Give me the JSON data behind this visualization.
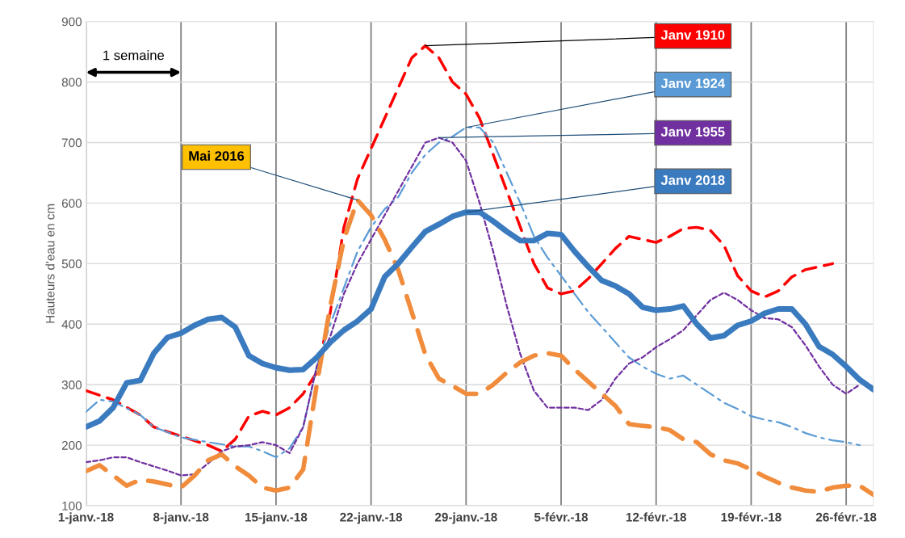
{
  "chart_data": {
    "type": "line",
    "ylabel": "Hauteurs d'eau en cm",
    "grid": true,
    "legend": false,
    "xlim": [
      "2018-01-01",
      "2018-02-28"
    ],
    "ylim": [
      100,
      900
    ],
    "yticks": [
      100,
      200,
      300,
      400,
      500,
      600,
      700,
      800,
      900
    ],
    "xticks": [
      {
        "value": "2018-01-01",
        "label": "1-janv.-18"
      },
      {
        "value": "2018-01-08",
        "label": "8-janv.-18"
      },
      {
        "value": "2018-01-15",
        "label": "15-janv.-18"
      },
      {
        "value": "2018-01-22",
        "label": "22-janv.-18"
      },
      {
        "value": "2018-01-29",
        "label": "29-janv.-18"
      },
      {
        "value": "2018-02-05",
        "label": "5-févr.-18"
      },
      {
        "value": "2018-02-12",
        "label": "12-févr.-18"
      },
      {
        "value": "2018-02-19",
        "label": "19-févr.-18"
      },
      {
        "value": "2018-02-26",
        "label": "26-févr.-18"
      }
    ],
    "annotations": [
      "1 semaine"
    ],
    "series": [
      {
        "name": "Janv 1910",
        "color": "#ff0000",
        "line_style": "dashed",
        "x": [
          "2018-01-01",
          "2018-01-03",
          "2018-01-05",
          "2018-01-06",
          "2018-01-08",
          "2018-01-10",
          "2018-01-11",
          "2018-01-12",
          "2018-01-13",
          "2018-01-14",
          "2018-01-15",
          "2018-01-16",
          "2018-01-17",
          "2018-01-18",
          "2018-01-19",
          "2018-01-20",
          "2018-01-21",
          "2018-01-22",
          "2018-01-23",
          "2018-01-24",
          "2018-01-25",
          "2018-01-26",
          "2018-01-27",
          "2018-01-28",
          "2018-01-29",
          "2018-01-30",
          "2018-01-31",
          "2018-02-01",
          "2018-02-02",
          "2018-02-03",
          "2018-02-04",
          "2018-02-05",
          "2018-02-06",
          "2018-02-07",
          "2018-02-08",
          "2018-02-09",
          "2018-02-10",
          "2018-02-11",
          "2018-02-12",
          "2018-02-13",
          "2018-02-14",
          "2018-02-15",
          "2018-02-16",
          "2018-02-17",
          "2018-02-18",
          "2018-02-19",
          "2018-02-20",
          "2018-02-21",
          "2018-02-22",
          "2018-02-23",
          "2018-02-24",
          "2018-02-25"
        ],
        "values": [
          290,
          275,
          250,
          230,
          215,
          200,
          190,
          210,
          248,
          256,
          250,
          262,
          285,
          320,
          420,
          560,
          640,
          690,
          740,
          790,
          840,
          860,
          840,
          800,
          780,
          740,
          680,
          620,
          560,
          500,
          460,
          450,
          455,
          475,
          500,
          525,
          545,
          540,
          535,
          545,
          558,
          560,
          555,
          530,
          480,
          455,
          445,
          455,
          478,
          490,
          495,
          500
        ]
      },
      {
        "name": "Janv 1924",
        "color": "#5b9bd5",
        "line_style": "dashdot",
        "x": [
          "2018-01-01",
          "2018-01-02",
          "2018-01-03",
          "2018-01-05",
          "2018-01-06",
          "2018-01-08",
          "2018-01-10",
          "2018-01-12",
          "2018-01-13",
          "2018-01-14",
          "2018-01-15",
          "2018-01-16",
          "2018-01-17",
          "2018-01-18",
          "2018-01-19",
          "2018-01-20",
          "2018-01-21",
          "2018-01-22",
          "2018-01-23",
          "2018-01-24",
          "2018-01-25",
          "2018-01-26",
          "2018-01-27",
          "2018-01-28",
          "2018-01-29",
          "2018-01-30",
          "2018-01-31",
          "2018-02-01",
          "2018-02-02",
          "2018-02-03",
          "2018-02-04",
          "2018-02-05",
          "2018-02-06",
          "2018-02-07",
          "2018-02-08",
          "2018-02-09",
          "2018-02-10",
          "2018-02-11",
          "2018-02-12",
          "2018-02-13",
          "2018-02-14",
          "2018-02-15",
          "2018-02-16",
          "2018-02-17",
          "2018-02-18",
          "2018-02-19",
          "2018-02-20",
          "2018-02-21",
          "2018-02-22",
          "2018-02-23",
          "2018-02-24",
          "2018-02-25",
          "2018-02-26",
          "2018-02-27"
        ],
        "values": [
          255,
          275,
          272,
          250,
          230,
          213,
          205,
          198,
          198,
          190,
          180,
          195,
          230,
          330,
          400,
          460,
          520,
          560,
          590,
          610,
          650,
          680,
          700,
          710,
          725,
          725,
          700,
          650,
          600,
          545,
          510,
          480,
          450,
          420,
          395,
          370,
          345,
          330,
          318,
          310,
          315,
          300,
          285,
          270,
          260,
          248,
          242,
          238,
          230,
          220,
          213,
          208,
          205,
          200
        ]
      },
      {
        "name": "Janv 1955",
        "color": "#7030a0",
        "line_style": "dotted",
        "x": [
          "2018-01-01",
          "2018-01-02",
          "2018-01-03",
          "2018-01-04",
          "2018-01-05",
          "2018-01-06",
          "2018-01-07",
          "2018-01-08",
          "2018-01-09",
          "2018-01-10",
          "2018-01-11",
          "2018-01-12",
          "2018-01-13",
          "2018-01-14",
          "2018-01-15",
          "2018-01-16",
          "2018-01-17",
          "2018-01-18",
          "2018-01-19",
          "2018-01-20",
          "2018-01-21",
          "2018-01-22",
          "2018-01-23",
          "2018-01-24",
          "2018-01-25",
          "2018-01-26",
          "2018-01-27",
          "2018-01-28",
          "2018-01-29",
          "2018-01-30",
          "2018-01-31",
          "2018-02-01",
          "2018-02-02",
          "2018-02-03",
          "2018-02-04",
          "2018-02-05",
          "2018-02-06",
          "2018-02-07",
          "2018-02-08",
          "2018-02-09",
          "2018-02-10",
          "2018-02-11",
          "2018-02-12",
          "2018-02-13",
          "2018-02-14",
          "2018-02-15",
          "2018-02-16",
          "2018-02-17",
          "2018-02-18",
          "2018-02-19",
          "2018-02-20",
          "2018-02-21",
          "2018-02-22",
          "2018-02-23",
          "2018-02-24",
          "2018-02-25",
          "2018-02-26",
          "2018-02-27"
        ],
        "values": [
          172,
          175,
          180,
          180,
          172,
          165,
          158,
          150,
          152,
          170,
          190,
          198,
          200,
          205,
          200,
          187,
          230,
          330,
          380,
          450,
          500,
          540,
          580,
          620,
          660,
          700,
          708,
          700,
          670,
          600,
          520,
          430,
          350,
          290,
          262,
          262,
          262,
          258,
          275,
          310,
          335,
          345,
          362,
          375,
          390,
          415,
          440,
          452,
          440,
          423,
          410,
          408,
          395,
          365,
          330,
          300,
          285,
          300
        ]
      },
      {
        "name": "Janv 2018",
        "color": "#3a7abf",
        "line_style": "solid",
        "x": [
          "2018-01-01",
          "2018-01-02",
          "2018-01-03",
          "2018-01-04",
          "2018-01-05",
          "2018-01-06",
          "2018-01-07",
          "2018-01-08",
          "2018-01-09",
          "2018-01-10",
          "2018-01-11",
          "2018-01-12",
          "2018-01-13",
          "2018-01-14",
          "2018-01-15",
          "2018-01-16",
          "2018-01-17",
          "2018-01-18",
          "2018-01-19",
          "2018-01-20",
          "2018-01-21",
          "2018-01-22",
          "2018-01-23",
          "2018-01-24",
          "2018-01-25",
          "2018-01-26",
          "2018-01-27",
          "2018-01-28",
          "2018-01-29",
          "2018-01-30",
          "2018-01-31",
          "2018-02-01",
          "2018-02-02",
          "2018-02-03",
          "2018-02-04",
          "2018-02-05",
          "2018-02-06",
          "2018-02-07",
          "2018-02-08",
          "2018-02-09",
          "2018-02-10",
          "2018-02-11",
          "2018-02-12",
          "2018-02-13",
          "2018-02-14",
          "2018-02-15",
          "2018-02-16",
          "2018-02-17",
          "2018-02-18",
          "2018-02-19",
          "2018-02-20",
          "2018-02-21",
          "2018-02-22",
          "2018-02-23",
          "2018-02-24",
          "2018-02-25",
          "2018-02-26",
          "2018-02-27",
          "2018-02-28"
        ],
        "values": [
          230,
          240,
          262,
          303,
          307,
          352,
          378,
          385,
          398,
          408,
          411,
          395,
          348,
          335,
          328,
          324,
          325,
          345,
          370,
          390,
          405,
          425,
          478,
          500,
          527,
          553,
          565,
          578,
          585,
          585,
          570,
          553,
          538,
          538,
          550,
          548,
          520,
          495,
          472,
          463,
          450,
          428,
          423,
          425,
          430,
          400,
          377,
          381,
          398,
          405,
          418,
          425,
          425,
          400,
          363,
          350,
          330,
          308,
          292
        ]
      },
      {
        "name": "Mai 2016",
        "color": "#f08c3c",
        "line_style": "dashed",
        "x": [
          "2018-01-01",
          "2018-01-02",
          "2018-01-03",
          "2018-01-04",
          "2018-01-05",
          "2018-01-06",
          "2018-01-07",
          "2018-01-08",
          "2018-01-09",
          "2018-01-10",
          "2018-01-11",
          "2018-01-12",
          "2018-01-13",
          "2018-01-14",
          "2018-01-15",
          "2018-01-16",
          "2018-01-17",
          "2018-01-18",
          "2018-01-19",
          "2018-01-20",
          "2018-01-21",
          "2018-01-22",
          "2018-01-23",
          "2018-01-24",
          "2018-01-25",
          "2018-01-26",
          "2018-01-27",
          "2018-01-28",
          "2018-01-29",
          "2018-01-30",
          "2018-01-31",
          "2018-02-01",
          "2018-02-02",
          "2018-02-03",
          "2018-02-04",
          "2018-02-05",
          "2018-02-06",
          "2018-02-07",
          "2018-02-08",
          "2018-02-09",
          "2018-02-10",
          "2018-02-11",
          "2018-02-12",
          "2018-02-13",
          "2018-02-14",
          "2018-02-15",
          "2018-02-16",
          "2018-02-17",
          "2018-02-18",
          "2018-02-19",
          "2018-02-20",
          "2018-02-21",
          "2018-02-22",
          "2018-02-23",
          "2018-02-24",
          "2018-02-25",
          "2018-02-26",
          "2018-02-27",
          "2018-02-28"
        ],
        "values": [
          157,
          167,
          150,
          133,
          143,
          140,
          135,
          130,
          150,
          175,
          185,
          165,
          150,
          130,
          125,
          130,
          160,
          300,
          430,
          540,
          605,
          580,
          540,
          490,
          420,
          350,
          310,
          298,
          285,
          285,
          300,
          320,
          337,
          348,
          352,
          348,
          325,
          305,
          285,
          265,
          235,
          232,
          230,
          225,
          210,
          205,
          185,
          175,
          170,
          160,
          148,
          138,
          130,
          125,
          123,
          130,
          133,
          133,
          118
        ]
      }
    ]
  }
}
